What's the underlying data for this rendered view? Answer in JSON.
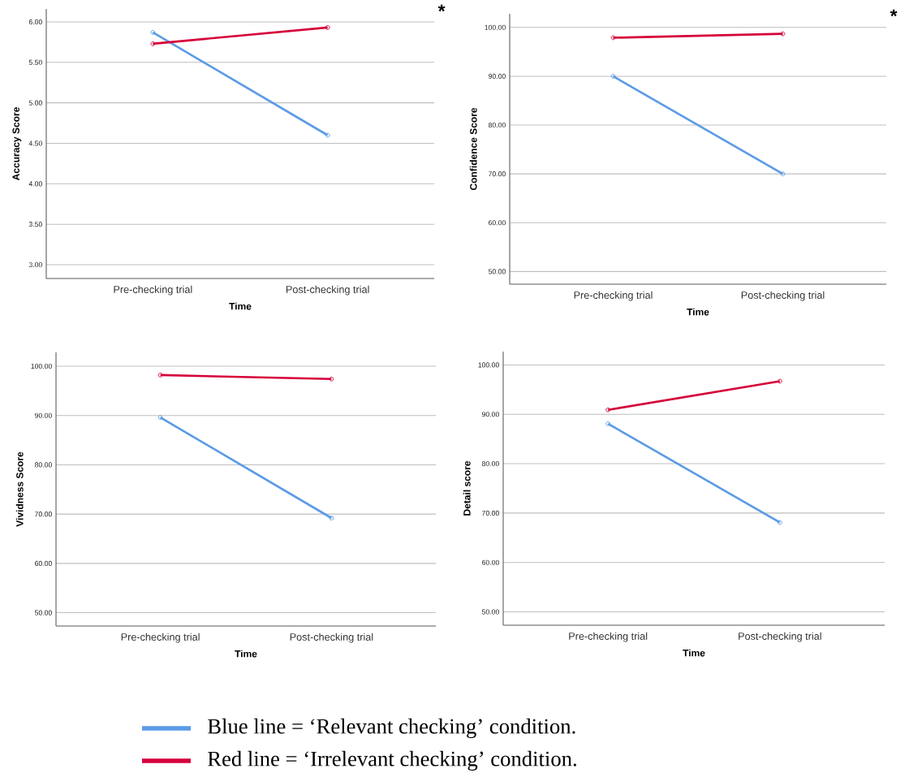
{
  "chart_data": [
    {
      "type": "line",
      "xlabel": "Time",
      "ylabel": "Accuracy Score",
      "categories": [
        "Pre-checking trial",
        "Post-checking trial"
      ],
      "ylim": [
        2.83,
        6.16
      ],
      "yticks": [
        {
          "value": 3,
          "label": "3.00"
        },
        {
          "value": 3.5,
          "label": "3.50"
        },
        {
          "value": 4,
          "label": "4.00"
        },
        {
          "value": 4.5,
          "label": "4.50"
        },
        {
          "value": 5,
          "label": "5.00"
        },
        {
          "value": 5.5,
          "label": "5.50"
        },
        {
          "value": 6,
          "label": "6.00"
        }
      ],
      "grid": "y",
      "marker": "circle",
      "legend": "bottom",
      "annotations": [
        "*"
      ],
      "series": [
        {
          "name": "Blue line = ‘Relevant checking’ condition.",
          "color": "#5b9be6",
          "values": [
            5.87,
            4.6
          ]
        },
        {
          "name": "Red line = ‘Irrelevant checking’ condition.",
          "color": "#d6003a",
          "values": [
            5.73,
            5.93
          ]
        }
      ]
    },
    {
      "type": "line",
      "xlabel": "Time",
      "ylabel": "Confidence Score",
      "categories": [
        "Pre-checking trial",
        "Post-checking trial"
      ],
      "ylim": [
        47.4,
        102.8
      ],
      "yticks": [
        {
          "value": 50,
          "label": "50.00"
        },
        {
          "value": 60,
          "label": "60.00"
        },
        {
          "value": 70,
          "label": "70.00"
        },
        {
          "value": 80,
          "label": "80.00"
        },
        {
          "value": 90,
          "label": "90.00"
        },
        {
          "value": 100,
          "label": "100.00"
        }
      ],
      "grid": "y",
      "marker": "circle",
      "annotations": [
        "*"
      ],
      "series": [
        {
          "color": "#5b9be6",
          "values": [
            90.0,
            70.0
          ]
        },
        {
          "color": "#d6003a",
          "values": [
            97.9,
            98.7
          ]
        }
      ]
    },
    {
      "type": "line",
      "xlabel": "Time",
      "ylabel": "Vividness Score",
      "categories": [
        "Pre-checking trial",
        "Post-checking trial"
      ],
      "ylim": [
        47.3,
        102.8
      ],
      "yticks": [
        {
          "value": 50,
          "label": "50.00"
        },
        {
          "value": 60,
          "label": "60.00"
        },
        {
          "value": 70,
          "label": "70.00"
        },
        {
          "value": 80,
          "label": "80.00"
        },
        {
          "value": 90,
          "label": "90.00"
        },
        {
          "value": 100,
          "label": "100.00"
        }
      ],
      "grid": "y",
      "marker": "circle",
      "series": [
        {
          "color": "#5b9be6",
          "values": [
            89.6,
            69.2
          ]
        },
        {
          "color": "#d6003a",
          "values": [
            98.2,
            97.4
          ]
        }
      ]
    },
    {
      "type": "line",
      "xlabel": "Time",
      "ylabel": "Detail score",
      "categories": [
        "Pre-checking trial",
        "Post-checking trial"
      ],
      "ylim": [
        47.3,
        102.7
      ],
      "yticks": [
        {
          "value": 50,
          "label": "50.00"
        },
        {
          "value": 60,
          "label": "60.00"
        },
        {
          "value": 70,
          "label": "70.00"
        },
        {
          "value": 80,
          "label": "80.00"
        },
        {
          "value": 90,
          "label": "90.00"
        },
        {
          "value": 100,
          "label": "100.00"
        }
      ],
      "grid": "y",
      "marker": "circle",
      "series": [
        {
          "color": "#5b9be6",
          "values": [
            88.1,
            68.1
          ]
        },
        {
          "color": "#d6003a",
          "values": [
            90.9,
            96.7
          ]
        }
      ]
    }
  ]
}
